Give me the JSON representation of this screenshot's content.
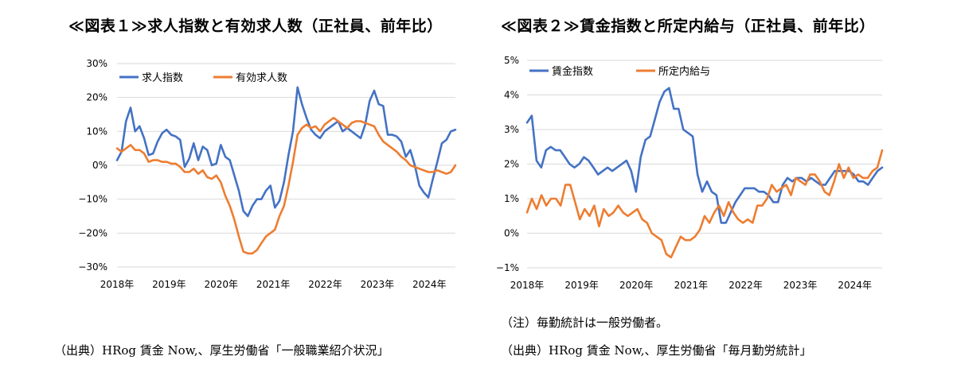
{
  "figure1": {
    "title": "≪図表１≫求人指数と有効求人数（正社員、前年比）",
    "source": "（出典）HRog 賃金 Now,、厚生労働省「一般職業紹介状況」"
  },
  "figure2": {
    "title": "≪図表２≫賃金指数と所定内給与（正社員、前年比）",
    "note": "（注）毎勤統計は一般労働者。",
    "source": "（出典）HRog 賃金 Now,、厚生労働省「毎月勤労統計」"
  },
  "colors": {
    "blue": "#4472c4",
    "orange": "#ed7d31",
    "grid": "#d9d9d9"
  },
  "chart_data": [
    {
      "type": "line",
      "title": "≪図表１≫求人指数と有効求人数（正社員、前年比）",
      "x_labels": [
        "2018年",
        "2019年",
        "2020年",
        "2021年",
        "2022年",
        "2023年",
        "2024年"
      ],
      "y_ticks": [
        "30%",
        "20%",
        "10%",
        "0%",
        "−10%",
        "−20%",
        "−30%"
      ],
      "ylim": [
        -30,
        30
      ],
      "x_start": 2018.0,
      "x_end": 2024.5,
      "grid": true,
      "legend_position": "top-left",
      "series": [
        {
          "name": "求人指数",
          "color": "#4472c4",
          "values": [
            1.5,
            4,
            13,
            17,
            10,
            11.5,
            8,
            3,
            3.5,
            7,
            9.5,
            10.5,
            9,
            8.5,
            7.5,
            -0.5,
            2,
            6.5,
            1.5,
            5.5,
            4.5,
            0,
            0.5,
            6,
            2.5,
            1.5,
            -3,
            -7.5,
            -13.5,
            -15,
            -12,
            -10,
            -10,
            -7.5,
            -6,
            -12.5,
            -10.5,
            -5,
            3,
            10,
            23,
            18,
            14,
            10.5,
            9,
            8,
            10,
            11,
            12,
            13,
            10,
            11,
            10,
            9,
            8,
            12,
            19,
            22,
            18,
            17.5,
            9,
            9,
            8.5,
            7,
            2.5,
            4.5,
            0,
            -6,
            -8,
            -9.5,
            -4,
            1,
            6.5,
            7.5,
            10,
            10.5
          ]
        },
        {
          "name": "有効求人数",
          "color": "#ed7d31",
          "values": [
            5,
            4,
            5,
            6,
            4.5,
            4.5,
            3.5,
            1,
            1.5,
            1.5,
            1,
            1,
            0.5,
            0.5,
            -0.5,
            -2,
            -2,
            -1,
            -2.5,
            -1.5,
            -3.5,
            -4,
            -3,
            -5,
            -9,
            -12,
            -16,
            -21,
            -25.5,
            -26,
            -26,
            -25,
            -23,
            -21,
            -20,
            -19,
            -15,
            -12,
            -6,
            1,
            9,
            11,
            12,
            11,
            11.5,
            10,
            12,
            13,
            14,
            13,
            12,
            11,
            12.5,
            13,
            13,
            12.5,
            12,
            11.5,
            9,
            7,
            6,
            5,
            4,
            2.5,
            1.5,
            0,
            -0.5,
            -1,
            -1.5,
            -2,
            -2,
            -1.5,
            -2,
            -2.5,
            -2,
            0
          ]
        }
      ]
    },
    {
      "type": "line",
      "title": "≪図表２≫賃金指数と所定内給与（正社員、前年比）",
      "x_labels": [
        "2018年",
        "2019年",
        "2020年",
        "2021年",
        "2022年",
        "2023年",
        "2024年"
      ],
      "y_ticks": [
        "5%",
        "4%",
        "3%",
        "2%",
        "1%",
        "0%",
        "−1%"
      ],
      "ylim": [
        -1,
        5
      ],
      "x_start": 2018.0,
      "x_end": 2024.5,
      "grid": true,
      "legend_position": "top-left",
      "series": [
        {
          "name": "賃金指数",
          "color": "#4472c4",
          "values": [
            3.2,
            3.4,
            2.1,
            1.9,
            2.4,
            2.5,
            2.4,
            2.4,
            2.2,
            2,
            1.9,
            2,
            2.2,
            2.1,
            1.9,
            1.7,
            1.8,
            1.9,
            1.8,
            1.9,
            2,
            2.1,
            1.8,
            1.2,
            2.2,
            2.7,
            2.8,
            3.3,
            3.8,
            4.1,
            4.2,
            3.6,
            3.6,
            3,
            2.9,
            2.8,
            1.7,
            1.2,
            1.5,
            1.2,
            1.1,
            0.3,
            0.3,
            0.6,
            0.9,
            1.1,
            1.3,
            1.3,
            1.3,
            1.2,
            1.2,
            1.1,
            0.9,
            0.9,
            1.4,
            1.6,
            1.5,
            1.6,
            1.6,
            1.5,
            1.6,
            1.5,
            1.4,
            1.4,
            1.6,
            1.8,
            1.8,
            1.8,
            1.8,
            1.7,
            1.5,
            1.5,
            1.4,
            1.6,
            1.8,
            1.9
          ]
        },
        {
          "name": "所定内給与",
          "color": "#ed7d31",
          "values": [
            0.6,
            1,
            0.7,
            1.1,
            0.8,
            1,
            1,
            0.8,
            1.4,
            1.4,
            0.9,
            0.4,
            0.7,
            0.5,
            0.8,
            0.2,
            0.7,
            0.5,
            0.6,
            0.8,
            0.6,
            0.5,
            0.6,
            0.7,
            0.4,
            0.3,
            0,
            -0.1,
            -0.2,
            -0.6,
            -0.7,
            -0.4,
            -0.1,
            -0.2,
            -0.2,
            -0.1,
            0.1,
            0.5,
            0.3,
            0.6,
            0.8,
            0.5,
            0.9,
            0.6,
            0.4,
            0.3,
            0.4,
            0.3,
            0.8,
            0.8,
            1,
            1.4,
            1.2,
            1.3,
            1.4,
            1.1,
            1.6,
            1.5,
            1.4,
            1.7,
            1.7,
            1.5,
            1.2,
            1.1,
            1.5,
            2,
            1.6,
            1.9,
            1.6,
            1.7,
            1.6,
            1.6,
            1.8,
            1.9,
            2.4
          ]
        }
      ]
    }
  ]
}
